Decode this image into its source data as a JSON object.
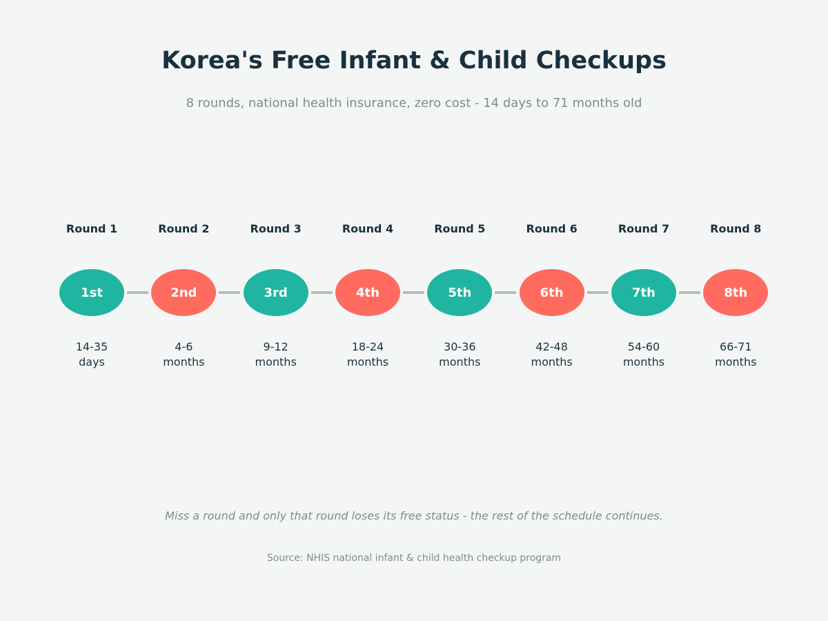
{
  "title": "Korea's Free Infant & Child Checkups",
  "subtitle": "8 rounds, national health insurance, zero cost - 14 days to 71 months old",
  "colors": {
    "teal": "#20b5a0",
    "coral": "#ff6b5e",
    "connector": "#b2bcba",
    "heading": "#18313f",
    "muted": "#7d8b8f"
  },
  "rounds": [
    {
      "label": "Round 1",
      "ordinal": "1st",
      "age_value": "14-35",
      "age_unit": "days",
      "color": "teal"
    },
    {
      "label": "Round 2",
      "ordinal": "2nd",
      "age_value": "4-6",
      "age_unit": "months",
      "color": "coral"
    },
    {
      "label": "Round 3",
      "ordinal": "3rd",
      "age_value": "9-12",
      "age_unit": "months",
      "color": "teal"
    },
    {
      "label": "Round 4",
      "ordinal": "4th",
      "age_value": "18-24",
      "age_unit": "months",
      "color": "coral"
    },
    {
      "label": "Round 5",
      "ordinal": "5th",
      "age_value": "30-36",
      "age_unit": "months",
      "color": "teal"
    },
    {
      "label": "Round 6",
      "ordinal": "6th",
      "age_value": "42-48",
      "age_unit": "months",
      "color": "coral"
    },
    {
      "label": "Round 7",
      "ordinal": "7th",
      "age_value": "54-60",
      "age_unit": "months",
      "color": "teal"
    },
    {
      "label": "Round 8",
      "ordinal": "8th",
      "age_value": "66-71",
      "age_unit": "months",
      "color": "coral"
    }
  ],
  "note": "Miss a round and only that round loses its free status - the rest of the schedule continues.",
  "source": "Source: NHIS national infant & child health checkup program"
}
